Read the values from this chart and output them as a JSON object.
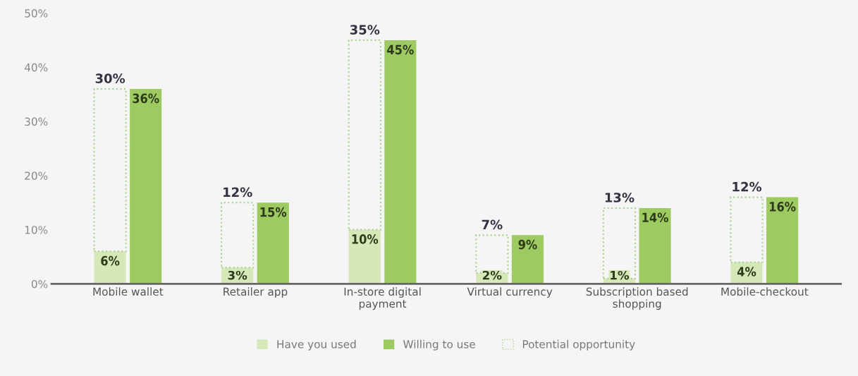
{
  "chart_data": {
    "type": "bar",
    "categories": [
      "Mobile wallet",
      "Retailer app",
      "In-store digital\npayment",
      "Virtual currency",
      "Subscription based\nshopping",
      "Mobile-checkout"
    ],
    "series": [
      {
        "name": "Have you used",
        "color": "#d6e8b8",
        "values": [
          6,
          3,
          10,
          2,
          1,
          4
        ],
        "value_labels": [
          "6%",
          "3%",
          "10%",
          "2%",
          "1%",
          "4%"
        ]
      },
      {
        "name": "Willing to use",
        "color": "#9dcb62",
        "values": [
          36,
          15,
          45,
          9,
          14,
          16
        ],
        "value_labels": [
          "36%",
          "15%",
          "45%",
          "9%",
          "14%",
          "16%"
        ]
      },
      {
        "name": "Potential opportunity",
        "color": "#a9d18e",
        "line_style": "dotted",
        "base": [
          6,
          3,
          10,
          2,
          1,
          4
        ],
        "values": [
          30,
          12,
          35,
          7,
          13,
          12
        ],
        "value_labels": [
          "30%",
          "12%",
          "35%",
          "7%",
          "13%",
          "12%"
        ]
      }
    ],
    "ylim": [
      0,
      50
    ],
    "yticks": [
      {
        "value": 0,
        "label": "0%"
      },
      {
        "value": 10,
        "label": "10%"
      },
      {
        "value": 20,
        "label": "20%"
      },
      {
        "value": 30,
        "label": "30%"
      },
      {
        "value": 40,
        "label": "40%"
      },
      {
        "value": 50,
        "label": "50%"
      }
    ],
    "grid": false,
    "legend": "bottom"
  }
}
